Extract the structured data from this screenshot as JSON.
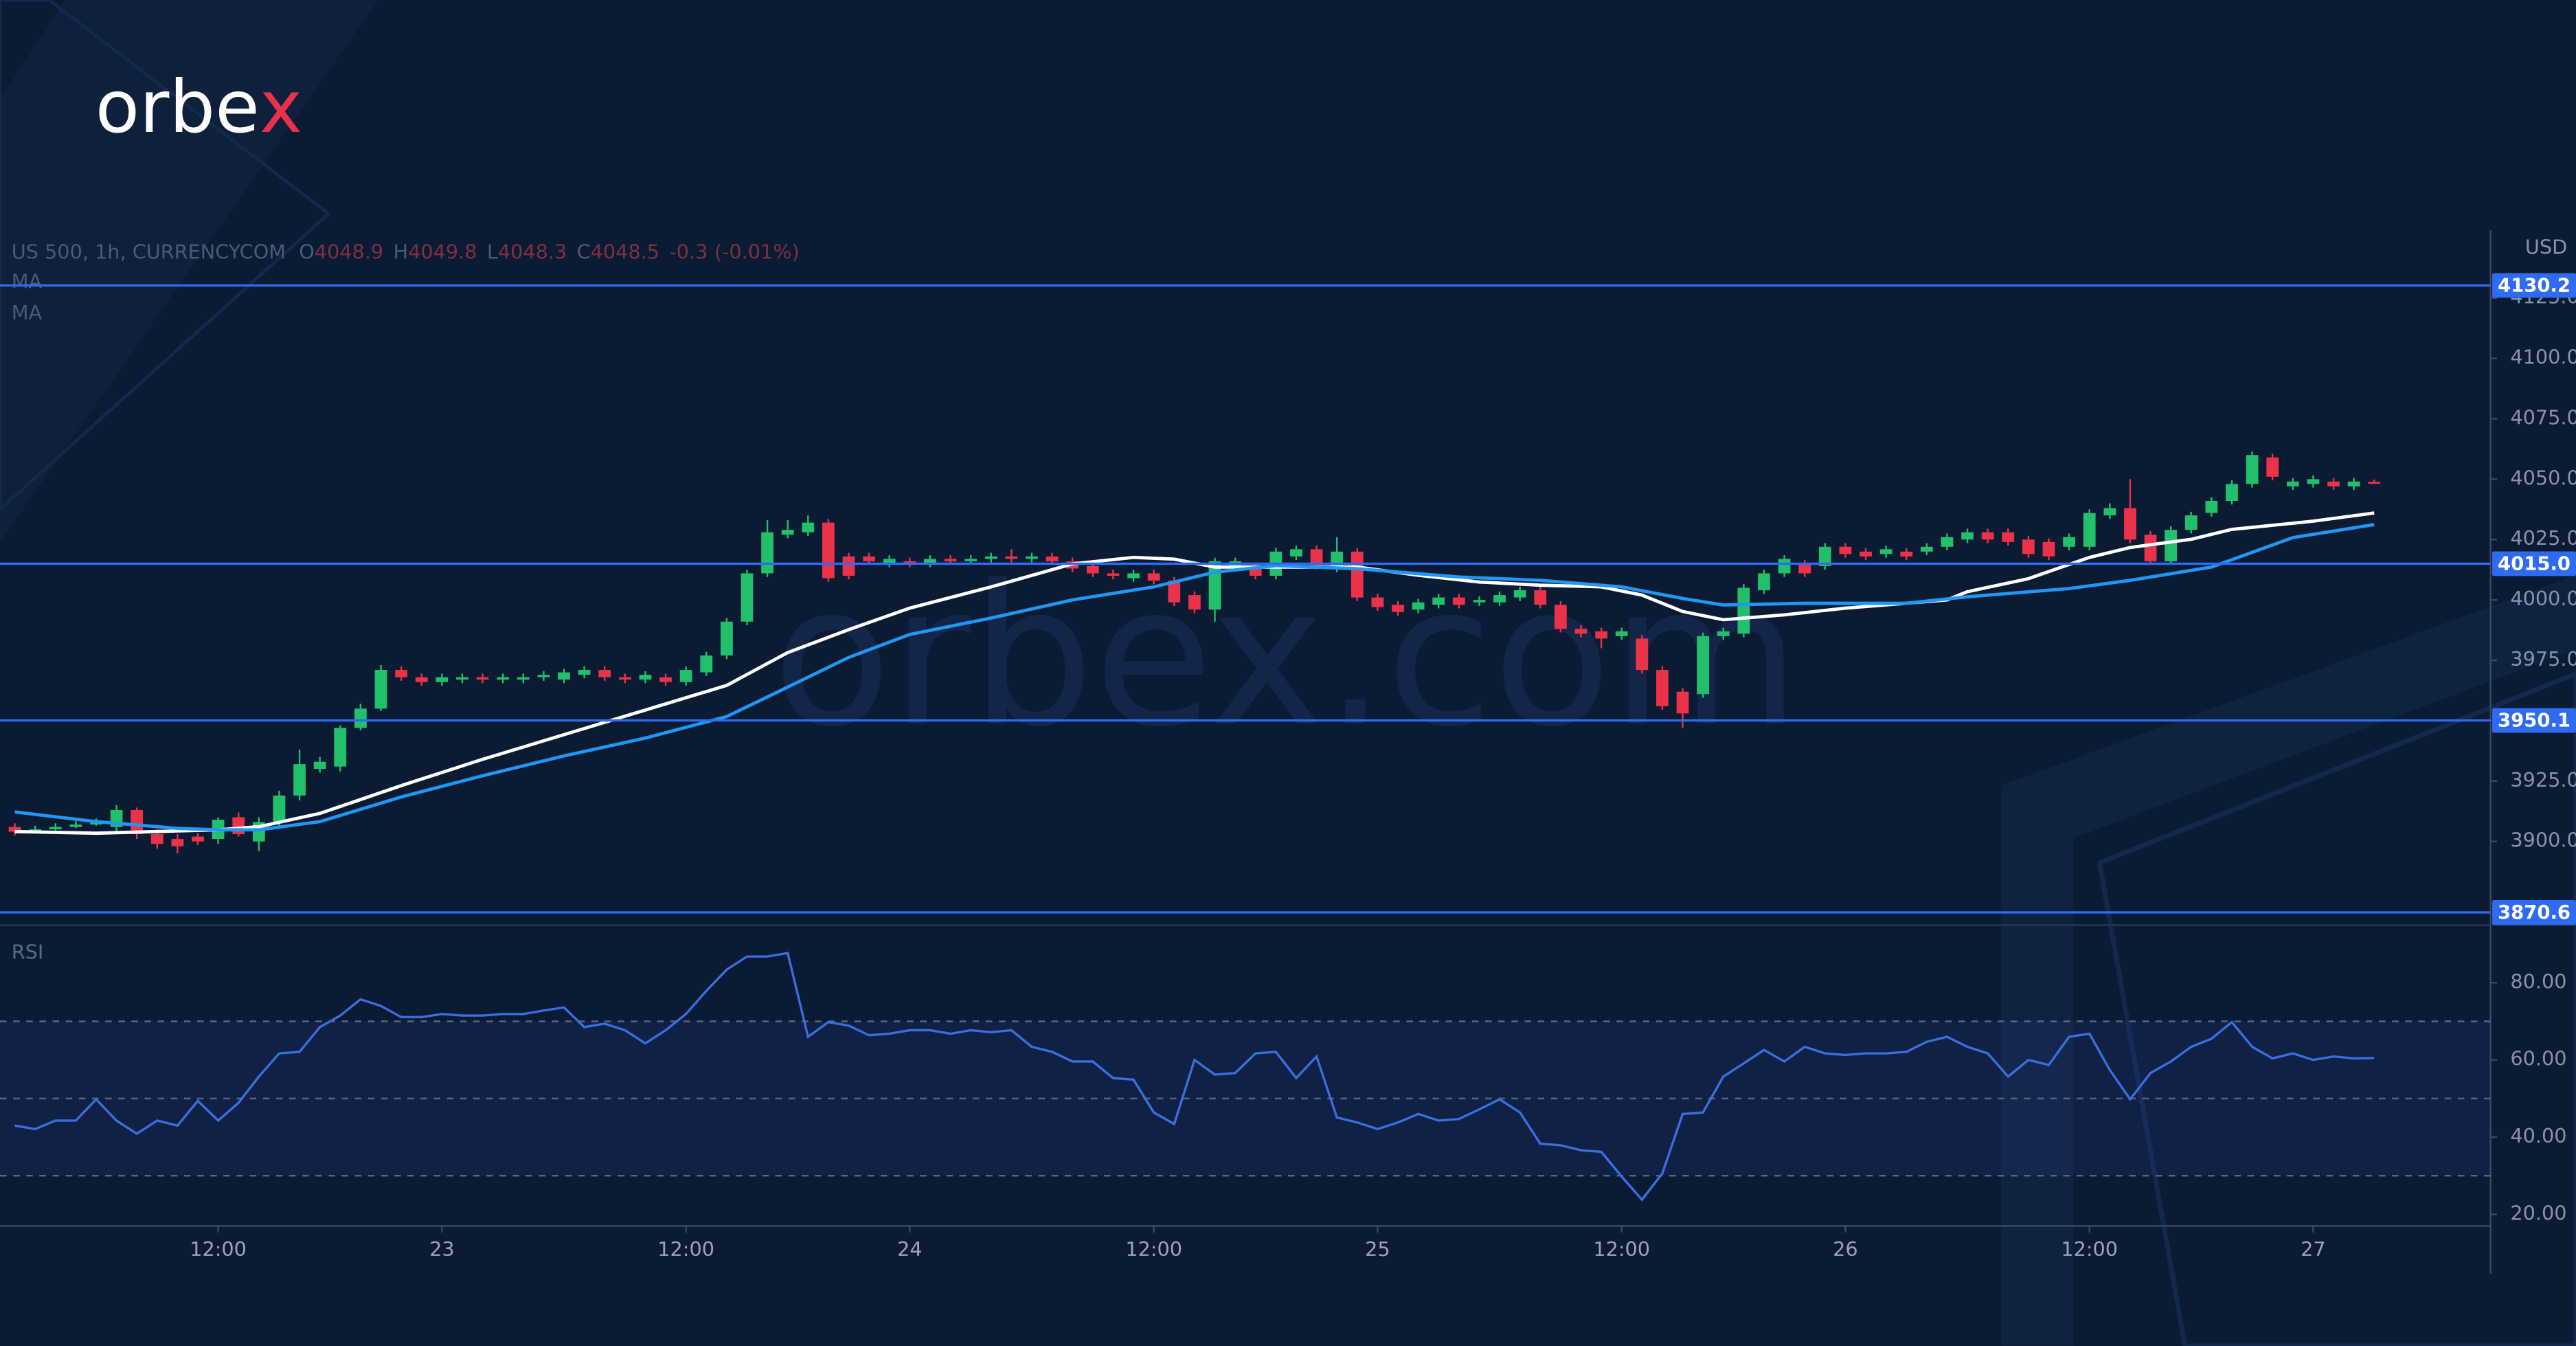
{
  "brand": {
    "logo": "orbex",
    "watermark": "orbex.com"
  },
  "chart_data": [
    {
      "type": "candlestick",
      "title": "US 500, 1h, CURRENCYCOM",
      "ohlc_legend": [
        {
          "label": "O",
          "value": 4048.9
        },
        {
          "label": "H",
          "value": 4049.8
        },
        {
          "label": "L",
          "value": 4048.3
        },
        {
          "label": "C",
          "value": 4048.5
        }
      ],
      "change": -0.3,
      "change_pct": {
        "value": -0.01,
        "label": "(-0.01%)"
      },
      "currency": "USD",
      "up_color": "#22c06a",
      "down_color": "#ea3349",
      "x": [
        0,
        1,
        2,
        3,
        4,
        5,
        6,
        7,
        8,
        9,
        10,
        11,
        12,
        13,
        14,
        15,
        16,
        17,
        18,
        19,
        20,
        21,
        22,
        23,
        24,
        25,
        26,
        27,
        28,
        29,
        30,
        31,
        32,
        33,
        34,
        35,
        36,
        37,
        38,
        39,
        40,
        41,
        42,
        43,
        44,
        45,
        46,
        47,
        48,
        49,
        50,
        51,
        52,
        53,
        54,
        55,
        56,
        57,
        58,
        59,
        60,
        61,
        62,
        63,
        64,
        65,
        66,
        67,
        68,
        69,
        70,
        71,
        72,
        73,
        74,
        75,
        76,
        77,
        78,
        79,
        80,
        81,
        82,
        83,
        84,
        85,
        86,
        87,
        88,
        89,
        90,
        91,
        92,
        93,
        94,
        95,
        96,
        97,
        98,
        99,
        100,
        101,
        102,
        103,
        104,
        105,
        106,
        107,
        108,
        109,
        110,
        111,
        112,
        113,
        114,
        115,
        116
      ],
      "open": [
        3906,
        3904,
        3905,
        3906,
        3907,
        3906,
        3913,
        3903,
        3901,
        3902,
        3901,
        3910,
        3900,
        3908,
        3919,
        3930,
        3931,
        3947,
        3955,
        3971,
        3968,
        3966,
        3967,
        3968,
        3967,
        3967,
        3968,
        3967,
        3969,
        3971,
        3968,
        3967,
        3968,
        3966,
        3970,
        3977,
        3991,
        4011,
        4027,
        4028,
        4032,
        4018,
        4018,
        4015,
        4016,
        4015,
        4017,
        4016,
        4017,
        4018,
        4017,
        4018,
        4016,
        4014,
        4011,
        4009,
        4011,
        4008,
        4002,
        3996,
        4014,
        4014,
        4010,
        4018,
        4021,
        4013,
        4020,
        4001,
        3998,
        3996,
        3998,
        4001,
        3999,
        3999,
        4001,
        4004,
        3998,
        3988,
        3987,
        3985,
        3984,
        3971,
        3962,
        3961,
        3985,
        3986,
        4004,
        4011,
        4015,
        4014,
        4022,
        4020,
        4019,
        4020,
        4020,
        4022,
        4025,
        4028,
        4028,
        4025,
        4024,
        4022,
        4022,
        4035,
        4038,
        4027,
        4016,
        4029,
        4036,
        4041,
        4048,
        4059,
        4047,
        4048,
        4049,
        4047,
        4048.9
      ],
      "high": [
        3907.5,
        3906.5,
        3907.5,
        3908.5,
        3909.5,
        3915,
        3914,
        3905,
        3903,
        3903.5,
        3910,
        3912,
        3910,
        3921,
        3938,
        3935,
        3948,
        3957,
        3973,
        3972.5,
        3969.5,
        3969.5,
        3969.5,
        3969.5,
        3969.5,
        3969.5,
        3970.5,
        3971.5,
        3972.5,
        3972.5,
        3969.5,
        3970.5,
        3969.5,
        3972.5,
        3978.5,
        3992.5,
        4012.5,
        4033,
        4033,
        4035,
        4033.5,
        4019.5,
        4019.5,
        4018.5,
        4017.5,
        4018.5,
        4018.5,
        4018.5,
        4019.5,
        4021,
        4019.5,
        4019.5,
        4017.5,
        4015.5,
        4012.5,
        4012.5,
        4012.5,
        4009.5,
        4003.5,
        4017.5,
        4017.5,
        4015.5,
        4021.5,
        4022.5,
        4022.5,
        4026,
        4021.5,
        4002.5,
        3999.5,
        4000.5,
        4002.5,
        4002.5,
        4001.5,
        4003.5,
        4005.5,
        4005.5,
        3999.5,
        3989.5,
        3988.5,
        3988.5,
        3985.5,
        3972.5,
        3963.5,
        3986.5,
        3988.5,
        4006.5,
        4012.5,
        4018.5,
        4016.5,
        4023.5,
        4023.5,
        4021.5,
        4022.5,
        4021.5,
        4023.5,
        4027.5,
        4029.5,
        4029.5,
        4029.5,
        4026.5,
        4025.5,
        4027.5,
        4037.5,
        4040,
        4050,
        4028.5,
        4030.5,
        4036.5,
        4042.5,
        4049.5,
        4061.5,
        4060.5,
        4050.5,
        4051.5,
        4050.5,
        4050.5,
        4049.8
      ],
      "low": [
        3902.5,
        3903.5,
        3904.5,
        3905.5,
        3906.5,
        3904,
        3901,
        3897,
        3895,
        3898.5,
        3899,
        3902,
        3896,
        3906,
        3917,
        3928.5,
        3929,
        3946,
        3954,
        3966.5,
        3964.5,
        3964.5,
        3965.5,
        3965.5,
        3965.5,
        3965.5,
        3966.5,
        3965.5,
        3967.5,
        3966.5,
        3965.5,
        3965.5,
        3964.5,
        3964.5,
        3968.5,
        3975.5,
        3989.5,
        4009.5,
        4025.5,
        4026.5,
        4007.5,
        4008.5,
        4014.5,
        4013.5,
        4013.5,
        4013.5,
        4014.5,
        4014.5,
        4015.5,
        4015.5,
        4015.5,
        4014.5,
        4011.5,
        4009.5,
        4008.5,
        4007.5,
        4006.5,
        3997.5,
        3994.5,
        3991,
        4012.5,
        4008.5,
        4008.5,
        4016.5,
        4012.5,
        4011.5,
        3999.5,
        3995.5,
        3993.5,
        3994.5,
        3996.5,
        3996.5,
        3997.5,
        3997.5,
        3999.5,
        3996.5,
        3986.5,
        3984.5,
        3980,
        3983.5,
        3969.5,
        3954.5,
        3947,
        3959.5,
        3983.5,
        3984.5,
        4002.5,
        4009.5,
        4009.5,
        4012.5,
        4017.5,
        4016.5,
        4017.5,
        4016.5,
        4018.5,
        4020.5,
        4023.5,
        4023.5,
        4022.5,
        4017.5,
        4016.5,
        4020.5,
        4020.5,
        4033.5,
        4023.5,
        4014.5,
        4014.5,
        4027.5,
        4034.5,
        4039.5,
        4046.5,
        4049.5,
        4045.5,
        4046.5,
        4045.5,
        4045.5,
        4048.3
      ],
      "close": [
        3904,
        3905,
        3906,
        3907,
        3908,
        3913,
        3903,
        3899,
        3898,
        3900,
        3909,
        3903,
        3908,
        3919,
        3932,
        3933,
        3947,
        3955,
        3971,
        3968,
        3966,
        3968,
        3968,
        3967,
        3968,
        3968,
        3969,
        3970,
        3971,
        3968,
        3967,
        3969,
        3966,
        3971,
        3977,
        3991,
        4011,
        4028,
        4029,
        4032,
        4009,
        4010,
        4016,
        4017,
        4015,
        4017,
        4016,
        4017,
        4018,
        4017,
        4018,
        4016,
        4013,
        4011,
        4010,
        4011,
        4008,
        3999,
        3996,
        4016,
        4016,
        4010,
        4020,
        4021,
        4014,
        4020,
        4001,
        3997,
        3995,
        3999,
        4001,
        3998,
        4000,
        4002,
        4004,
        3998,
        3988,
        3986,
        3984,
        3987,
        3971,
        3956,
        3953,
        3985,
        3987,
        4005,
        4011,
        4017,
        4011,
        4022,
        4019,
        4018,
        4021,
        4018,
        4022,
        4026,
        4028,
        4025,
        4024,
        4019,
        4018,
        4026,
        4036,
        4038,
        4025,
        4016,
        4029,
        4035,
        4041,
        4048,
        4060,
        4051,
        4049,
        4050,
        4047,
        4049,
        4048.5
      ],
      "series": [
        {
          "name": "MA",
          "color": "#ffffff",
          "x": [
            0,
            4,
            10,
            12,
            15,
            19,
            23,
            27,
            31,
            35,
            38,
            41,
            44,
            48,
            52,
            55,
            57,
            59,
            62,
            66,
            69,
            72,
            75,
            78,
            80,
            82,
            84,
            87,
            90,
            93,
            95,
            96,
            99,
            102,
            104,
            107,
            109,
            113,
            116
          ],
          "values": [
            3904.1,
            3903.4,
            3904.8,
            3906.1,
            3911.6,
            3923.1,
            3934.0,
            3944.2,
            3954.4,
            3964.6,
            3978.2,
            3987.7,
            3996.6,
            4005.4,
            4014.9,
            4017.6,
            4016.9,
            4013.6,
            4013.6,
            4013.6,
            4010.2,
            4007.4,
            4006.1,
            4005.4,
            4002.0,
            3995.2,
            3991.8,
            3993.8,
            3996.6,
            3998.6,
            4000.0,
            4003.4,
            4008.8,
            4017.6,
            4021.7,
            4025.1,
            4029.2,
            4032.6,
            4036.0
          ]
        },
        {
          "name": "MA",
          "color": "#2196f3",
          "x": [
            0,
            4,
            8,
            10,
            12,
            15,
            19,
            23,
            27,
            31,
            35,
            38,
            41,
            44,
            48,
            52,
            56,
            59,
            62,
            66,
            71,
            75,
            79,
            82,
            84,
            88,
            93,
            96,
            101,
            104,
            108,
            112,
            116
          ],
          "values": [
            3912.2,
            3908.2,
            3905.4,
            3904.8,
            3904.8,
            3908.2,
            3918.4,
            3927.2,
            3935.4,
            3942.8,
            3951.7,
            3963.9,
            3976.2,
            3985.7,
            3992.5,
            4000.0,
            4005.4,
            4011.5,
            4014.2,
            4012.9,
            4009.5,
            4008.1,
            4005.4,
            4000.6,
            3997.9,
            3998.6,
            3998.6,
            4001.3,
            4004.7,
            4008.1,
            4013.6,
            4025.8,
            4031.2
          ]
        }
      ],
      "levels": [
        4130.2,
        {
          "value": 4015,
          "label": "4015.0"
        },
        3950.1,
        3870.6
      ],
      "level_color": "#2f6bf0",
      "xlim": [
        -0.727,
        121.72
      ],
      "ylim": [
        3865.3,
        4153.1
      ],
      "yticks": [
        {
          "value": 3900,
          "label": "3900.0"
        },
        {
          "value": 3925,
          "label": "3925.0"
        },
        {
          "value": 3950,
          "label": "3950.0"
        },
        {
          "value": 3975,
          "label": "3975.0"
        },
        {
          "value": 4000,
          "label": "4000.0"
        },
        {
          "value": 4025,
          "label": "4025.0"
        },
        {
          "value": 4050,
          "label": "4050.0"
        },
        {
          "value": 4075,
          "label": "4075.0"
        },
        {
          "value": 4100,
          "label": "4100.0"
        },
        {
          "value": 4125,
          "label": "4125.0"
        }
      ]
    },
    {
      "type": "line",
      "title": "RSI",
      "x": [
        0,
        1,
        2,
        3,
        4,
        5,
        6,
        7,
        8,
        9,
        10,
        11,
        12,
        13,
        14,
        15,
        16,
        17,
        18,
        19,
        20,
        21,
        22,
        23,
        24,
        25,
        26,
        27,
        28,
        29,
        30,
        31,
        32,
        33,
        34,
        35,
        36,
        37,
        38,
        39,
        40,
        41,
        42,
        43,
        44,
        45,
        46,
        47,
        48,
        49,
        50,
        51,
        52,
        53,
        54,
        55,
        56,
        57,
        58,
        59,
        60,
        61,
        62,
        63,
        64,
        65,
        66,
        67,
        68,
        69,
        70,
        71,
        72,
        73,
        74,
        75,
        76,
        77,
        78,
        79,
        80,
        81,
        82,
        83,
        84,
        85,
        86,
        87,
        88,
        89,
        90,
        91,
        92,
        93,
        94,
        95,
        96,
        97,
        98,
        99,
        100,
        101,
        102,
        103,
        104,
        105,
        106,
        107,
        108,
        109,
        110,
        111,
        112,
        113,
        114,
        115,
        116
      ],
      "values": [
        43.0,
        42.1,
        44.3,
        44.3,
        49.8,
        44.3,
        40.9,
        44.3,
        43.0,
        49.4,
        44.3,
        48.9,
        55.7,
        61.7,
        62.1,
        68.5,
        71.5,
        75.7,
        74.0,
        71.1,
        71.1,
        71.9,
        71.5,
        71.5,
        71.9,
        71.9,
        72.8,
        73.6,
        68.5,
        69.4,
        67.7,
        64.3,
        67.7,
        71.9,
        77.9,
        83.4,
        86.8,
        86.8,
        87.7,
        66.0,
        69.8,
        68.9,
        66.4,
        66.8,
        67.7,
        67.7,
        66.8,
        67.7,
        67.2,
        67.7,
        63.4,
        62.1,
        59.6,
        59.6,
        55.3,
        54.9,
        46.4,
        43.4,
        60.0,
        56.2,
        56.6,
        61.7,
        62.1,
        55.3,
        60.9,
        45.1,
        43.8,
        42.1,
        43.8,
        46.0,
        44.3,
        44.7,
        47.2,
        49.8,
        46.4,
        38.3,
        37.9,
        36.6,
        36.2,
        29.8,
        23.8,
        30.6,
        46.0,
        46.4,
        55.7,
        59.1,
        62.6,
        59.6,
        63.4,
        61.7,
        61.3,
        61.7,
        61.7,
        62.1,
        64.7,
        66.0,
        63.4,
        61.7,
        55.7,
        60.0,
        58.7,
        66.0,
        66.8,
        57.4,
        49.8,
        56.6,
        59.6,
        63.4,
        65.5,
        69.8,
        63.4,
        60.4,
        61.7,
        60.0,
        60.9,
        60.4,
        60.5
      ],
      "color": "#3b6fe0",
      "hlines": [
        30,
        50,
        70
      ],
      "xlim": [
        -0.727,
        121.72
      ],
      "ylim": [
        17,
        94.9
      ],
      "yticks": [
        {
          "value": 20,
          "label": "20.00"
        },
        {
          "value": 40,
          "label": "40.00"
        },
        {
          "value": 60,
          "label": "60.00"
        },
        {
          "value": 80,
          "label": "80.00"
        }
      ],
      "xticks": [
        {
          "value": 10,
          "label": "12:00"
        },
        {
          "value": 21,
          "label": "23"
        },
        {
          "value": 33,
          "label": "12:00"
        },
        {
          "value": 44,
          "label": "24"
        },
        {
          "value": 56,
          "label": "12:00"
        },
        {
          "value": 67,
          "label": "25"
        },
        {
          "value": 79,
          "label": "12:00"
        },
        {
          "value": 90,
          "label": "26"
        },
        {
          "value": 102,
          "label": "12:00"
        },
        {
          "value": 113,
          "label": "27"
        }
      ]
    }
  ]
}
